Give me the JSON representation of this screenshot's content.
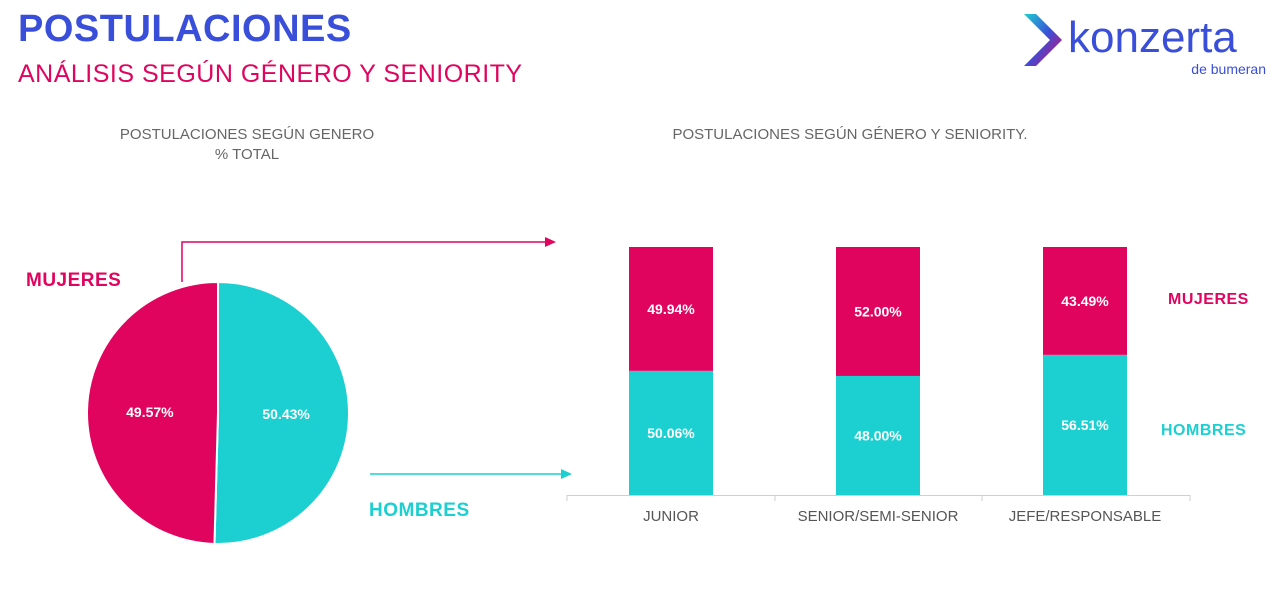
{
  "header": {
    "title": "POSTULACIONES",
    "subtitle": "ANÁLISIS SEGÚN GÉNERO Y SENIORITY"
  },
  "brand": {
    "name": "konzerta",
    "tagline": "de bumeran",
    "text_color": "#3a4fd9"
  },
  "colors": {
    "mujeres": "#e0045e",
    "hombres": "#1ccfd0"
  },
  "labels": {
    "mujeres": "MUJERES",
    "hombres": "HOMBRES"
  },
  "chart_data": [
    {
      "type": "pie",
      "title_line1": "POSTULACIONES SEGÚN GENERO",
      "title_line2": "% TOTAL",
      "slices": [
        {
          "name": "MUJERES",
          "value": 49.57,
          "label": "49.57%"
        },
        {
          "name": "HOMBRES",
          "value": 50.43,
          "label": "50.43%"
        }
      ]
    },
    {
      "type": "bar",
      "stacked": true,
      "title": "POSTULACIONES SEGÚN GÉNERO Y SENIORITY.",
      "categories": [
        "JUNIOR",
        "SENIOR/SEMI-SENIOR",
        "JEFE/RESPONSABLE"
      ],
      "ylim": [
        0,
        100
      ],
      "series": [
        {
          "name": "HOMBRES",
          "values": [
            50.06,
            48.0,
            56.51
          ],
          "labels": [
            "50.06%",
            "48.00%",
            "56.51%"
          ]
        },
        {
          "name": "MUJERES",
          "values": [
            49.94,
            52.0,
            43.49
          ],
          "labels": [
            "49.94%",
            "52.00%",
            "43.49%"
          ]
        }
      ]
    }
  ]
}
